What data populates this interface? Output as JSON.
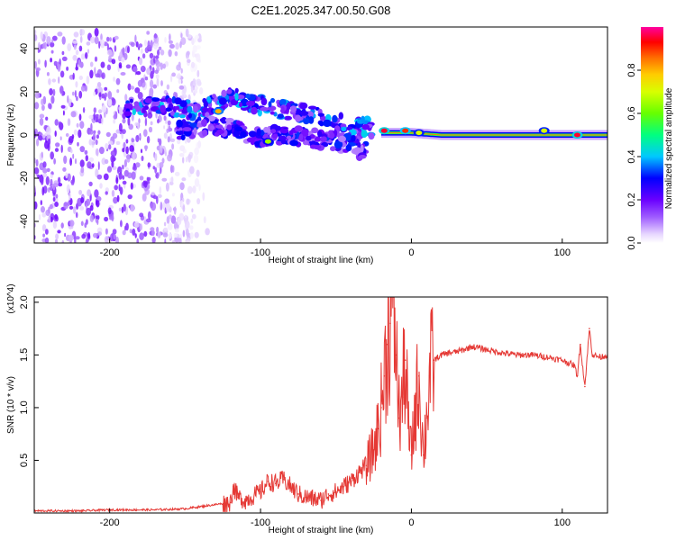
{
  "title": "C2E1.2025.347.00.50.G08",
  "chart_data": [
    {
      "type": "heatmap",
      "name": "Spectrogram",
      "xlabel": "Height of straight line (km)",
      "ylabel": "Frequency (Hz)",
      "xlim": [
        -250,
        130
      ],
      "ylim": [
        -50,
        50
      ],
      "xticks": [
        -200,
        -100,
        0,
        100
      ],
      "yticks": [
        -40,
        -20,
        0,
        20,
        40
      ],
      "colorbar": {
        "label": "Normalized spectral amplitude",
        "range": [
          0,
          1
        ],
        "ticks": [
          0.0,
          0.2,
          0.4,
          0.6,
          0.8
        ],
        "tick_labels": [
          "0.0",
          "0.2",
          "0.4",
          "0.6",
          "0.8"
        ]
      },
      "noise_region": {
        "x_from": -250,
        "x_to": -140,
        "freq_from": -50,
        "freq_to": 48,
        "amplitude": 0.12
      },
      "tracks": [
        {
          "name": "upper track",
          "x": [
            -190,
            -160,
            -140,
            -120,
            -100,
            -80,
            -60,
            -40,
            -25
          ],
          "freq": [
            13,
            13,
            11,
            18,
            14,
            11,
            8,
            4,
            3
          ],
          "amplitude": 0.28
        },
        {
          "name": "lower track",
          "x": [
            -155,
            -140,
            -120,
            -100,
            -80,
            -60,
            -40,
            -30
          ],
          "freq": [
            2,
            4,
            3,
            -1,
            0,
            -2,
            -4,
            -8
          ],
          "amplitude": 0.22
        },
        {
          "name": "carrier line",
          "x": [
            -20,
            0,
            20,
            40,
            60,
            80,
            100,
            130
          ],
          "freq": [
            1,
            1,
            0,
            0,
            0,
            0,
            0,
            0
          ],
          "amplitude": 0.75
        }
      ],
      "hotspots": [
        {
          "x": -128,
          "freq": 11,
          "amplitude": 0.8
        },
        {
          "x": -95,
          "freq": -3,
          "amplitude": 0.65
        },
        {
          "x": -18,
          "freq": 2,
          "amplitude": 0.95
        },
        {
          "x": -4,
          "freq": 2,
          "amplitude": 0.9
        },
        {
          "x": 5,
          "freq": 1,
          "amplitude": 0.7
        },
        {
          "x": 88,
          "freq": 2,
          "amplitude": 0.7
        },
        {
          "x": 110,
          "freq": 0,
          "amplitude": 0.95
        }
      ]
    },
    {
      "type": "line",
      "name": "SNR",
      "xlabel": "Height of straight line (km)",
      "ylabel": "SNR (10 * v/v)",
      "y_multiplier": "(x10^4)",
      "xlim": [
        -250,
        130
      ],
      "ylim": [
        0,
        2.05
      ],
      "xticks": [
        -200,
        -100,
        0,
        100
      ],
      "yticks": [
        0.5,
        1.0,
        1.5,
        2.0
      ],
      "ytick_labels": [
        "0.5",
        "1.0",
        "1.5",
        "2.0"
      ],
      "color": "#e53935",
      "series": [
        {
          "name": "SNR",
          "x": [
            -250,
            -220,
            -200,
            -170,
            -150,
            -140,
            -130,
            -120,
            -118,
            -115,
            -110,
            -100,
            -95,
            -90,
            -85,
            -80,
            -75,
            -70,
            -60,
            -55,
            -50,
            -45,
            -40,
            -35,
            -30,
            -25,
            -22,
            -20,
            -18,
            -16,
            -14,
            -12,
            -10,
            -8,
            -6,
            -4,
            -2,
            0,
            2,
            5,
            8,
            10,
            12,
            15,
            20,
            25,
            30,
            35,
            40,
            50,
            60,
            70,
            80,
            90,
            100,
            105,
            108,
            110,
            112,
            115,
            118,
            120,
            125,
            130
          ],
          "y": [
            0.02,
            0.02,
            0.03,
            0.03,
            0.04,
            0.06,
            0.08,
            0.1,
            0.25,
            0.15,
            0.12,
            0.2,
            0.3,
            0.28,
            0.32,
            0.25,
            0.18,
            0.15,
            0.12,
            0.18,
            0.2,
            0.25,
            0.3,
            0.38,
            0.45,
            0.6,
            0.8,
            1.0,
            1.3,
            1.6,
            1.8,
            2.05,
            1.5,
            0.9,
            1.1,
            1.45,
            0.8,
            0.55,
            0.9,
            1.3,
            0.55,
            0.9,
            1.3,
            1.45,
            1.5,
            1.52,
            1.53,
            1.55,
            1.58,
            1.55,
            1.52,
            1.5,
            1.5,
            1.48,
            1.45,
            1.42,
            1.4,
            1.3,
            1.6,
            1.2,
            1.75,
            1.5,
            1.48,
            1.5
          ]
        }
      ]
    }
  ]
}
